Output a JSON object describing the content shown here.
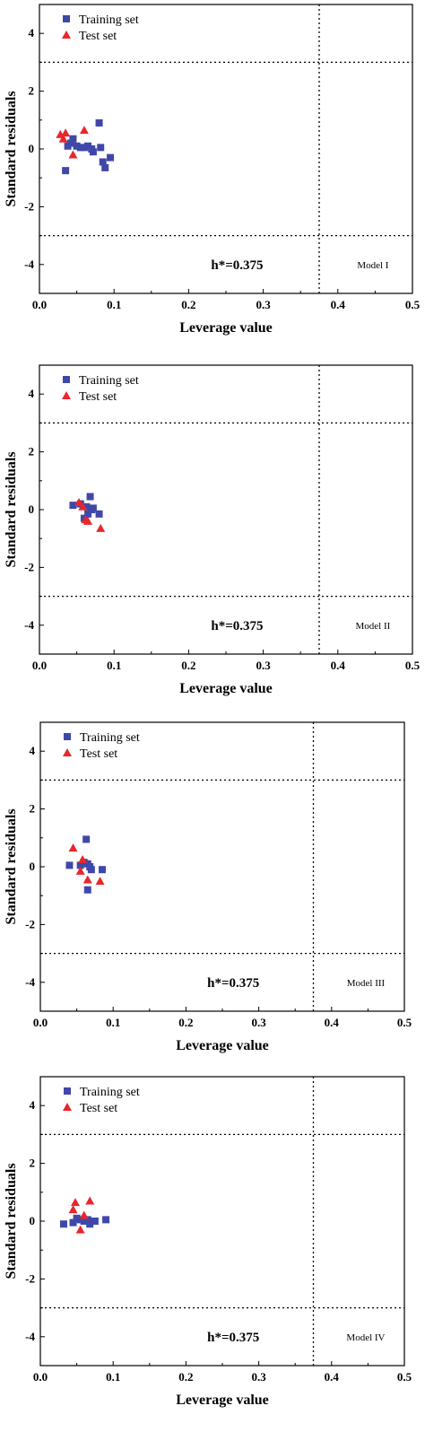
{
  "colors": {
    "training": "#3f48a8",
    "test": "#e8262b",
    "axis": "#000000"
  },
  "chart_data": [
    {
      "type": "scatter",
      "xlabel": "Leverage value",
      "ylabel": "Standard residuals",
      "xlim": [
        0.0,
        0.5
      ],
      "ylim": [
        -5,
        5
      ],
      "xticks": [
        "0.0",
        "0.1",
        "0.2",
        "0.3",
        "0.4",
        "0.5"
      ],
      "yticks": [
        "4",
        "2",
        "0",
        "-2",
        "-4"
      ],
      "legend": [
        "Training set",
        "Test set"
      ],
      "legend_position": "top-left",
      "annotation": "h*=0.375",
      "model_label": "Model I",
      "warning_leverage": 0.375,
      "residual_limits": [
        3,
        -3
      ],
      "series": [
        {
          "name": "Training set",
          "marker": "square",
          "points": [
            [
              0.035,
              -0.75
            ],
            [
              0.038,
              0.1
            ],
            [
              0.042,
              0.2
            ],
            [
              0.045,
              0.35
            ],
            [
              0.05,
              0.1
            ],
            [
              0.055,
              0.05
            ],
            [
              0.06,
              0.05
            ],
            [
              0.065,
              0.1
            ],
            [
              0.07,
              0.0
            ],
            [
              0.072,
              -0.1
            ],
            [
              0.08,
              0.9
            ],
            [
              0.082,
              0.05
            ],
            [
              0.085,
              -0.45
            ],
            [
              0.088,
              -0.65
            ],
            [
              0.095,
              -0.3
            ]
          ]
        },
        {
          "name": "Test set",
          "marker": "triangle",
          "points": [
            [
              0.028,
              0.5
            ],
            [
              0.032,
              0.35
            ],
            [
              0.035,
              0.55
            ],
            [
              0.045,
              -0.2
            ],
            [
              0.06,
              0.65
            ]
          ]
        }
      ]
    },
    {
      "type": "scatter",
      "xlabel": "Leverage value",
      "ylabel": "Standard residuals",
      "xlim": [
        0.0,
        0.5
      ],
      "ylim": [
        -5,
        5
      ],
      "xticks": [
        "0.0",
        "0.1",
        "0.2",
        "0.3",
        "0.4",
        "0.5"
      ],
      "yticks": [
        "4",
        "2",
        "0",
        "-2",
        "-4"
      ],
      "legend": [
        "Training set",
        "Test set"
      ],
      "legend_position": "top-left",
      "annotation": "h*=0.375",
      "model_label": "Model II",
      "warning_leverage": 0.375,
      "residual_limits": [
        3,
        -3
      ],
      "series": [
        {
          "name": "Training set",
          "marker": "square",
          "points": [
            [
              0.045,
              0.15
            ],
            [
              0.055,
              0.2
            ],
            [
              0.06,
              -0.3
            ],
            [
              0.063,
              0.1
            ],
            [
              0.065,
              -0.15
            ],
            [
              0.068,
              0.45
            ],
            [
              0.07,
              0.0
            ],
            [
              0.072,
              0.05
            ],
            [
              0.08,
              -0.15
            ]
          ]
        },
        {
          "name": "Test set",
          "marker": "triangle",
          "points": [
            [
              0.053,
              0.25
            ],
            [
              0.058,
              0.1
            ],
            [
              0.062,
              -0.35
            ],
            [
              0.065,
              -0.4
            ],
            [
              0.082,
              -0.65
            ]
          ]
        }
      ]
    },
    {
      "type": "scatter",
      "xlabel": "Leverage value",
      "ylabel": "Standard residuals",
      "xlim": [
        0.0,
        0.5
      ],
      "ylim": [
        -5,
        5
      ],
      "xticks": [
        "0.0",
        "0.1",
        "0.2",
        "0.3",
        "0.4",
        "0.5"
      ],
      "yticks": [
        "4",
        "2",
        "0",
        "-2",
        "-4"
      ],
      "legend": [
        "Training set",
        "Test set"
      ],
      "legend_position": "top-left",
      "annotation": "h*=0.375",
      "model_label": "Model III",
      "warning_leverage": 0.375,
      "residual_limits": [
        3,
        -3
      ],
      "series": [
        {
          "name": "Training set",
          "marker": "square",
          "points": [
            [
              0.04,
              0.05
            ],
            [
              0.055,
              0.05
            ],
            [
              0.06,
              0.15
            ],
            [
              0.063,
              0.95
            ],
            [
              0.065,
              0.1
            ],
            [
              0.068,
              0.0
            ],
            [
              0.07,
              -0.1
            ],
            [
              0.065,
              -0.8
            ],
            [
              0.085,
              -0.1
            ]
          ]
        },
        {
          "name": "Test set",
          "marker": "triangle",
          "points": [
            [
              0.045,
              0.65
            ],
            [
              0.055,
              -0.15
            ],
            [
              0.058,
              0.25
            ],
            [
              0.065,
              -0.45
            ],
            [
              0.082,
              -0.5
            ]
          ]
        }
      ]
    },
    {
      "type": "scatter",
      "xlabel": "Leverage value",
      "ylabel": "Standard residuals",
      "xlim": [
        0.0,
        0.5
      ],
      "ylim": [
        -5,
        5
      ],
      "xticks": [
        "0.0",
        "0.1",
        "0.2",
        "0.3",
        "0.4",
        "0.5"
      ],
      "yticks": [
        "4",
        "2",
        "0",
        "-2",
        "-4"
      ],
      "legend": [
        "Training set",
        "Test set"
      ],
      "legend_position": "top-left",
      "annotation": "h*=0.375",
      "model_label": "Model IV",
      "warning_leverage": 0.375,
      "residual_limits": [
        3,
        -3
      ],
      "series": [
        {
          "name": "Training set",
          "marker": "square",
          "points": [
            [
              0.032,
              -0.1
            ],
            [
              0.045,
              -0.05
            ],
            [
              0.05,
              0.1
            ],
            [
              0.055,
              0.05
            ],
            [
              0.06,
              0.0
            ],
            [
              0.065,
              0.05
            ],
            [
              0.068,
              -0.1
            ],
            [
              0.07,
              0.0
            ],
            [
              0.075,
              0.0
            ],
            [
              0.09,
              0.05
            ]
          ]
        },
        {
          "name": "Test set",
          "marker": "triangle",
          "points": [
            [
              0.045,
              0.4
            ],
            [
              0.048,
              0.65
            ],
            [
              0.055,
              -0.3
            ],
            [
              0.06,
              0.2
            ],
            [
              0.068,
              0.7
            ]
          ]
        }
      ]
    }
  ]
}
